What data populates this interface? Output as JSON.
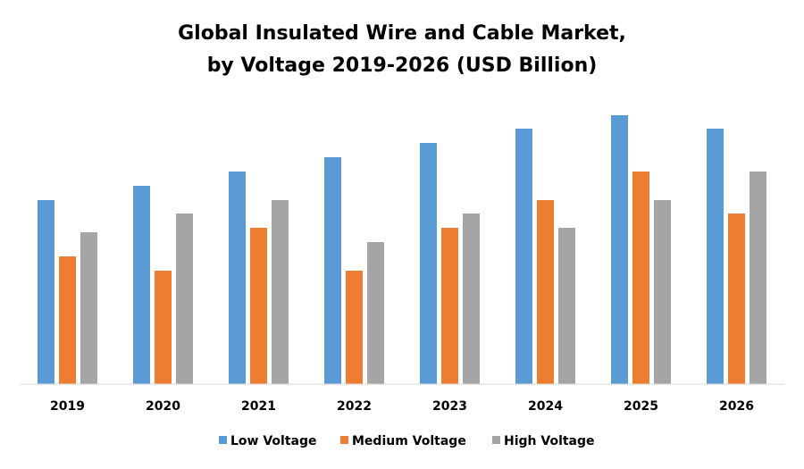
{
  "chart_data": {
    "type": "bar",
    "title": "Global Insulated Wire and Cable Market,",
    "subtitle": "by Voltage 2019-2026 (USD Billion)",
    "xlabel": "",
    "ylabel": "",
    "ylim": [
      0,
      32
    ],
    "grid": false,
    "y_axis_shown": false,
    "legend_position": "bottom",
    "categories": [
      "2019",
      "2020",
      "2021",
      "2022",
      "2023",
      "2024",
      "2025",
      "2026"
    ],
    "series": [
      {
        "name": "Low Voltage",
        "color": "#5B9BD5",
        "values": [
          20.6,
          22.2,
          23.8,
          25.4,
          27.0,
          28.6,
          30.1,
          28.6
        ]
      },
      {
        "name": "Medium Voltage",
        "color": "#ED7D31",
        "values": [
          14.3,
          12.7,
          17.5,
          12.7,
          17.5,
          20.6,
          23.8,
          19.1
        ]
      },
      {
        "name": "High Voltage",
        "color": "#A5A5A5",
        "values": [
          17.0,
          19.1,
          20.6,
          15.9,
          19.1,
          17.5,
          20.6,
          23.8
        ]
      }
    ]
  }
}
